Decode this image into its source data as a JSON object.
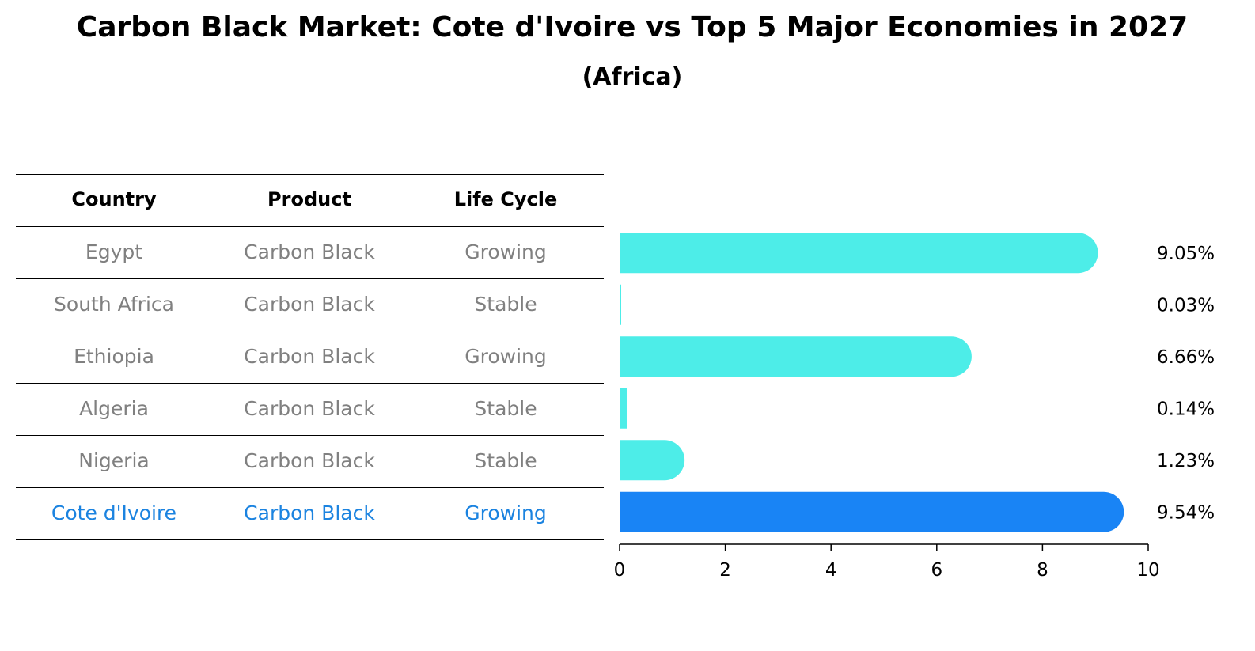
{
  "title": "Carbon Black Market: Cote d'Ivoire vs Top 5 Major Economies in 2027",
  "subtitle": "(Africa)",
  "table": {
    "headers": [
      "Country",
      "Product",
      "Life Cycle"
    ],
    "rows": [
      [
        "Egypt",
        "Carbon Black",
        "Growing"
      ],
      [
        "South Africa",
        "Carbon Black",
        "Stable"
      ],
      [
        "Ethiopia",
        "Carbon Black",
        "Growing"
      ],
      [
        "Algeria",
        "Carbon Black",
        "Stable"
      ],
      [
        "Nigeria",
        "Carbon Black",
        "Stable"
      ],
      [
        "Cote d'Ivoire",
        "Carbon Black",
        "Growing"
      ]
    ],
    "highlight_row": 5
  },
  "colors": {
    "bar": "#4dede8",
    "highlight_bar": "#1984f5",
    "highlight_text": "#1b83e0",
    "muted_text": "#808080"
  },
  "chart_data": {
    "type": "bar",
    "orientation": "horizontal",
    "categories": [
      "Egypt",
      "South Africa",
      "Ethiopia",
      "Algeria",
      "Nigeria",
      "Cote d'Ivoire"
    ],
    "values": [
      9.05,
      0.03,
      6.66,
      0.14,
      1.23,
      9.54
    ],
    "value_labels": [
      "9.05%",
      "0.03%",
      "6.66%",
      "0.14%",
      "1.23%",
      "9.54%"
    ],
    "xlim": [
      0,
      10
    ],
    "xticks": [
      "0",
      "2",
      "4",
      "6",
      "8",
      "10"
    ],
    "xtick_values": [
      0,
      2,
      4,
      6,
      8,
      10
    ],
    "grid": false,
    "highlight_index": 5
  }
}
